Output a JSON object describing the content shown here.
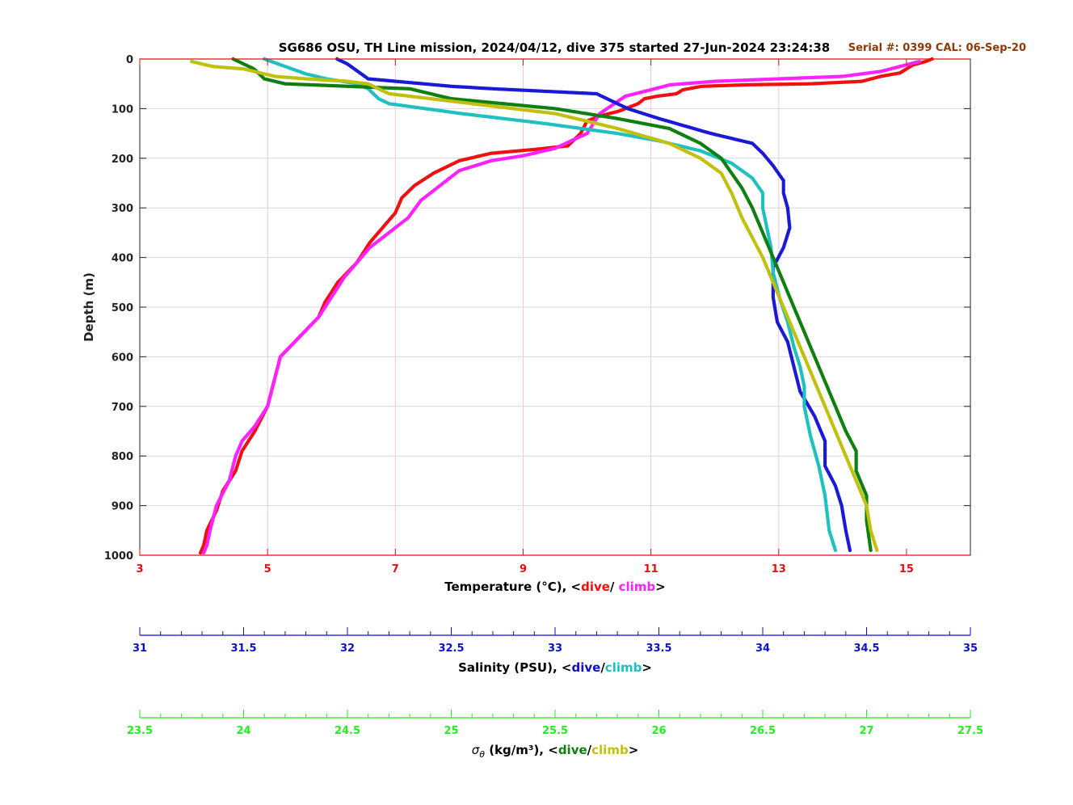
{
  "chart_data": {
    "type": "scatter",
    "title": "SG686 OSU, TH Line mission, 2024/04/12, dive 375 started 27-Jun-2024 23:24:38",
    "serial_note": "Serial #: 0399  CAL: 06-Sep-20",
    "ylabel": "Depth (m)",
    "ylim": [
      0,
      1000
    ],
    "y_reversed": true,
    "y_ticks": [
      "0",
      "100",
      "200",
      "300",
      "400",
      "500",
      "600",
      "700",
      "800",
      "900",
      "1000"
    ],
    "grid": true,
    "colors": {
      "temp_dive": "#ee1111",
      "temp_climb": "#ff22ff",
      "sal_dive": "#1a1ad6",
      "sal_climb": "#1fc0c0",
      "dens_dive": "#0f7f10",
      "dens_climb": "#c0c010",
      "temp_axis": "#e01010",
      "sal_axis": "#1010c8",
      "dens_axis": "#22ee22",
      "serial": "#8b3a0a"
    },
    "axes": [
      {
        "id": "temperature",
        "label_prefix": "Temperature (°C), <",
        "label_dive": "dive",
        "label_sep": "/ ",
        "label_climb": "climb",
        "label_suffix": ">",
        "xlim": [
          3,
          16
        ],
        "ticks": [
          "3",
          "5",
          "7",
          "9",
          "11",
          "13",
          "15"
        ]
      },
      {
        "id": "salinity",
        "label_prefix": "Salinity (PSU), <",
        "label_dive": "dive",
        "label_sep": "/",
        "label_climb": "climb",
        "label_suffix": ">",
        "xlim": [
          31,
          35
        ],
        "ticks": [
          "31",
          "31.5",
          "32",
          "32.5",
          "33",
          "33.5",
          "34",
          "34.5",
          "35"
        ]
      },
      {
        "id": "density",
        "label_symbol": "σθ",
        "label_prefix": "(kg/m³), <",
        "label_dive": "dive",
        "label_sep": "/",
        "label_climb": "climb",
        "label_suffix": ">",
        "xlim": [
          23.5,
          27.5
        ],
        "ticks": [
          "23.5",
          "24",
          "24.5",
          "25",
          "25.5",
          "26",
          "26.5",
          "27",
          "27.5"
        ]
      }
    ],
    "series": [
      {
        "axis": "temperature",
        "name": "dive",
        "color_key": "temp_dive",
        "points": [
          [
            15.4,
            0
          ],
          [
            15.3,
            5
          ],
          [
            15.1,
            12
          ],
          [
            15.0,
            20
          ],
          [
            14.9,
            28
          ],
          [
            14.6,
            35
          ],
          [
            14.3,
            45
          ],
          [
            13.5,
            50
          ],
          [
            12.5,
            52
          ],
          [
            11.8,
            55
          ],
          [
            11.5,
            62
          ],
          [
            11.4,
            70
          ],
          [
            11.1,
            75
          ],
          [
            10.9,
            80
          ],
          [
            10.8,
            90
          ],
          [
            10.5,
            105
          ],
          [
            10.2,
            115
          ],
          [
            10.0,
            125
          ],
          [
            9.9,
            150
          ],
          [
            9.7,
            175
          ],
          [
            9.2,
            182
          ],
          [
            8.5,
            190
          ],
          [
            8.0,
            205
          ],
          [
            7.6,
            230
          ],
          [
            7.3,
            255
          ],
          [
            7.1,
            280
          ],
          [
            7.0,
            310
          ],
          [
            6.8,
            340
          ],
          [
            6.6,
            370
          ],
          [
            6.4,
            410
          ],
          [
            6.1,
            450
          ],
          [
            5.9,
            490
          ],
          [
            5.8,
            520
          ],
          [
            5.5,
            560
          ],
          [
            5.2,
            600
          ],
          [
            5.1,
            650
          ],
          [
            5.0,
            700
          ],
          [
            4.8,
            750
          ],
          [
            4.6,
            790
          ],
          [
            4.5,
            830
          ],
          [
            4.3,
            870
          ],
          [
            4.2,
            910
          ],
          [
            4.05,
            950
          ],
          [
            4.0,
            980
          ],
          [
            3.95,
            995
          ]
        ]
      },
      {
        "axis": "temperature",
        "name": "climb",
        "color_key": "temp_climb",
        "points": [
          [
            15.2,
            5
          ],
          [
            14.6,
            25
          ],
          [
            14.0,
            35
          ],
          [
            13.0,
            40
          ],
          [
            12.0,
            45
          ],
          [
            11.3,
            52
          ],
          [
            11.0,
            62
          ],
          [
            10.6,
            75
          ],
          [
            10.2,
            110
          ],
          [
            10.1,
            130
          ],
          [
            10.0,
            150
          ],
          [
            9.5,
            180
          ],
          [
            9.0,
            195
          ],
          [
            8.5,
            205
          ],
          [
            8.0,
            225
          ],
          [
            7.7,
            255
          ],
          [
            7.4,
            285
          ],
          [
            7.2,
            320
          ],
          [
            6.9,
            350
          ],
          [
            6.6,
            380
          ],
          [
            6.4,
            410
          ],
          [
            6.2,
            440
          ],
          [
            6.0,
            480
          ],
          [
            5.8,
            520
          ],
          [
            5.5,
            560
          ],
          [
            5.2,
            600
          ],
          [
            5.1,
            650
          ],
          [
            5.0,
            700
          ],
          [
            4.8,
            740
          ],
          [
            4.6,
            770
          ],
          [
            4.5,
            800
          ],
          [
            4.4,
            850
          ],
          [
            4.2,
            900
          ],
          [
            4.1,
            950
          ],
          [
            4.05,
            980
          ],
          [
            4.0,
            995
          ]
        ]
      },
      {
        "axis": "salinity",
        "name": "dive",
        "color_key": "sal_dive",
        "points": [
          [
            31.95,
            0
          ],
          [
            32.0,
            10
          ],
          [
            32.1,
            40
          ],
          [
            32.5,
            55
          ],
          [
            32.7,
            60
          ],
          [
            33.2,
            70
          ],
          [
            33.25,
            80
          ],
          [
            33.35,
            100
          ],
          [
            33.5,
            120
          ],
          [
            33.75,
            150
          ],
          [
            33.95,
            170
          ],
          [
            34.0,
            190
          ],
          [
            34.05,
            215
          ],
          [
            34.1,
            245
          ],
          [
            34.1,
            270
          ],
          [
            34.12,
            300
          ],
          [
            34.13,
            340
          ],
          [
            34.1,
            380
          ],
          [
            34.05,
            420
          ],
          [
            34.05,
            480
          ],
          [
            34.07,
            530
          ],
          [
            34.12,
            570
          ],
          [
            34.15,
            620
          ],
          [
            34.18,
            670
          ],
          [
            34.25,
            720
          ],
          [
            34.3,
            770
          ],
          [
            34.3,
            820
          ],
          [
            34.35,
            860
          ],
          [
            34.38,
            900
          ],
          [
            34.4,
            950
          ],
          [
            34.42,
            990
          ]
        ]
      },
      {
        "axis": "salinity",
        "name": "climb",
        "color_key": "sal_climb",
        "points": [
          [
            31.6,
            0
          ],
          [
            31.7,
            15
          ],
          [
            31.8,
            30
          ],
          [
            31.9,
            40
          ],
          [
            32.05,
            50
          ],
          [
            32.1,
            60
          ],
          [
            32.15,
            80
          ],
          [
            32.2,
            90
          ],
          [
            32.55,
            110
          ],
          [
            32.95,
            130
          ],
          [
            33.3,
            150
          ],
          [
            33.5,
            165
          ],
          [
            33.7,
            185
          ],
          [
            33.85,
            210
          ],
          [
            33.95,
            240
          ],
          [
            34.0,
            270
          ],
          [
            34.0,
            300
          ],
          [
            34.02,
            340
          ],
          [
            34.04,
            380
          ],
          [
            34.05,
            430
          ],
          [
            34.08,
            480
          ],
          [
            34.12,
            530
          ],
          [
            34.15,
            580
          ],
          [
            34.18,
            620
          ],
          [
            34.2,
            660
          ],
          [
            34.2,
            700
          ],
          [
            34.23,
            760
          ],
          [
            34.27,
            820
          ],
          [
            34.3,
            880
          ],
          [
            34.32,
            950
          ],
          [
            34.35,
            990
          ]
        ]
      },
      {
        "axis": "density",
        "name": "dive",
        "color_key": "dens_dive",
        "points": [
          [
            23.95,
            0
          ],
          [
            24.05,
            20
          ],
          [
            24.1,
            40
          ],
          [
            24.2,
            50
          ],
          [
            24.8,
            60
          ],
          [
            25.0,
            80
          ],
          [
            25.5,
            100
          ],
          [
            25.8,
            120
          ],
          [
            26.05,
            140
          ],
          [
            26.2,
            170
          ],
          [
            26.3,
            200
          ],
          [
            26.35,
            230
          ],
          [
            26.4,
            260
          ],
          [
            26.45,
            300
          ],
          [
            26.5,
            350
          ],
          [
            26.55,
            400
          ],
          [
            26.6,
            450
          ],
          [
            26.65,
            500
          ],
          [
            26.7,
            550
          ],
          [
            26.75,
            600
          ],
          [
            26.8,
            650
          ],
          [
            26.85,
            700
          ],
          [
            26.9,
            750
          ],
          [
            26.95,
            790
          ],
          [
            26.95,
            830
          ],
          [
            27.0,
            880
          ],
          [
            27.0,
            930
          ],
          [
            27.02,
            990
          ]
        ]
      },
      {
        "axis": "density",
        "name": "climb",
        "color_key": "dens_climb",
        "points": [
          [
            23.75,
            5
          ],
          [
            23.85,
            15
          ],
          [
            24.0,
            20
          ],
          [
            24.15,
            35
          ],
          [
            24.3,
            40
          ],
          [
            24.5,
            45
          ],
          [
            24.6,
            50
          ],
          [
            24.7,
            70
          ],
          [
            25.1,
            90
          ],
          [
            25.5,
            110
          ],
          [
            25.8,
            140
          ],
          [
            26.05,
            170
          ],
          [
            26.2,
            200
          ],
          [
            26.3,
            230
          ],
          [
            26.35,
            270
          ],
          [
            26.4,
            320
          ],
          [
            26.45,
            360
          ],
          [
            26.5,
            400
          ],
          [
            26.55,
            450
          ],
          [
            26.6,
            500
          ],
          [
            26.65,
            550
          ],
          [
            26.7,
            600
          ],
          [
            26.75,
            650
          ],
          [
            26.8,
            700
          ],
          [
            26.85,
            750
          ],
          [
            26.9,
            800
          ],
          [
            26.95,
            850
          ],
          [
            27.0,
            900
          ],
          [
            27.02,
            950
          ],
          [
            27.05,
            990
          ]
        ]
      }
    ]
  }
}
